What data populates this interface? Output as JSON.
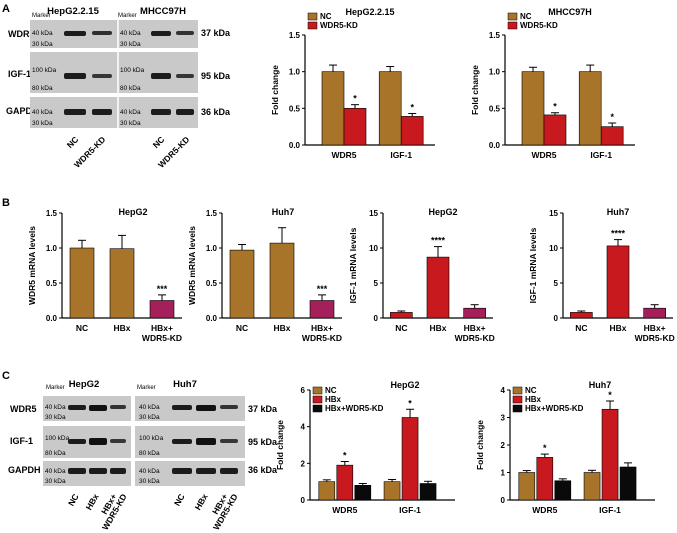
{
  "colors": {
    "nc": "#a8742a",
    "wdr5_kd": "#c8191f",
    "hbx": "#c8191f",
    "hbx_wdr5kd": "#0a0a0a",
    "hbx_wdr5kd_mrna": "#a5205a",
    "blot_bg": "#c9c9c9",
    "band": "#1c1c1c"
  },
  "panel_labels": {
    "a": "A",
    "b": "B",
    "c": "C"
  },
  "blots": {
    "common": {
      "marker": "Marker",
      "kda_37": "37 kDa",
      "kda_95": "95 kDa",
      "kda_36": "36 kDa",
      "mw_40": "40 kDa",
      "mw_30": "30 kDa",
      "mw_100": "100 kDa",
      "mw_80": "80 kDa",
      "row_wdr5": "WDR5",
      "row_igf1": "IGF-1",
      "row_gapdh": "GAPDH"
    },
    "a": {
      "left_title": "HepG2.2.15",
      "right_title": "MHCC97H",
      "lanes": [
        "NC",
        "WDR5-KD"
      ]
    },
    "c": {
      "left_title": "HepG2",
      "right_title": "Huh7",
      "lanes": [
        "NC",
        "HBx",
        "HBx+",
        "WDR5-KD"
      ]
    }
  },
  "chart_data": [
    {
      "id": "a1",
      "type": "bar",
      "title": "HepG2.2.15",
      "xlabel": "",
      "ylabel": "Fold change",
      "categories": [
        "WDR5",
        "IGF-1"
      ],
      "ylim": [
        0,
        1.5
      ],
      "yticks": [
        "0.0",
        "0.5",
        "1.0",
        "1.5"
      ],
      "series": [
        {
          "name": "NC",
          "values": [
            1.0,
            1.0
          ],
          "errors": [
            0.09,
            0.07
          ]
        },
        {
          "name": "WDR5-KD",
          "values": [
            0.5,
            0.39
          ],
          "errors": [
            0.05,
            0.04
          ]
        }
      ],
      "annotations": [
        "*",
        "*"
      ],
      "legend": "top-left"
    },
    {
      "id": "a2",
      "type": "bar",
      "title": "MHCC97H",
      "xlabel": "",
      "ylabel": "Fold change",
      "categories": [
        "WDR5",
        "IGF-1"
      ],
      "ylim": [
        0,
        1.5
      ],
      "yticks": [
        "0.0",
        "0.5",
        "1.0",
        "1.5"
      ],
      "series": [
        {
          "name": "NC",
          "values": [
            1.0,
            1.0
          ],
          "errors": [
            0.06,
            0.09
          ]
        },
        {
          "name": "WDR5-KD",
          "values": [
            0.41,
            0.25
          ],
          "errors": [
            0.03,
            0.05
          ]
        }
      ],
      "annotations": [
        "*",
        "*"
      ],
      "legend": "top-left"
    },
    {
      "id": "b1",
      "type": "bar",
      "title": "HepG2",
      "xlabel": "",
      "ylabel": "WDR5 mRNA levels",
      "categories": [
        "NC",
        "HBx",
        "HBx+|WDR5-KD"
      ],
      "ylim": [
        0,
        1.5
      ],
      "yticks": [
        "0.0",
        "0.5",
        "1.0",
        "1.5"
      ],
      "values": [
        1.0,
        0.99,
        0.25
      ],
      "errors": [
        0.11,
        0.19,
        0.08
      ],
      "annotations": [
        "",
        "",
        "***"
      ]
    },
    {
      "id": "b2",
      "type": "bar",
      "title": "Huh7",
      "xlabel": "",
      "ylabel": "WDR5 mRNA levels",
      "categories": [
        "NC",
        "HBx",
        "HBx+|WDR5-KD"
      ],
      "ylim": [
        0,
        1.5
      ],
      "yticks": [
        "0.0",
        "0.5",
        "1.0",
        "1.5"
      ],
      "values": [
        0.97,
        1.07,
        0.25
      ],
      "errors": [
        0.08,
        0.22,
        0.08
      ],
      "annotations": [
        "",
        "",
        "***"
      ]
    },
    {
      "id": "b3",
      "type": "bar",
      "title": "HepG2",
      "xlabel": "",
      "ylabel": "IGF-1 mRNA levels",
      "categories": [
        "NC",
        "HBx",
        "HBx+|WDR5-KD"
      ],
      "ylim": [
        0,
        15
      ],
      "yticks": [
        "0",
        "5",
        "10",
        "15"
      ],
      "values": [
        0.8,
        8.7,
        1.4
      ],
      "errors": [
        0.2,
        1.5,
        0.5
      ],
      "annotations": [
        "",
        "****",
        ""
      ]
    },
    {
      "id": "b4",
      "type": "bar",
      "title": "Huh7",
      "xlabel": "",
      "ylabel": "IGF-1 mRNA levels",
      "categories": [
        "NC",
        "HBx",
        "HBx+|WDR5-KD"
      ],
      "ylim": [
        0,
        15
      ],
      "yticks": [
        "0",
        "5",
        "10",
        "15"
      ],
      "values": [
        0.8,
        10.3,
        1.4
      ],
      "errors": [
        0.2,
        0.9,
        0.5
      ],
      "annotations": [
        "",
        "****",
        ""
      ]
    },
    {
      "id": "c1",
      "type": "bar",
      "title": "HepG2",
      "xlabel": "",
      "ylabel": "Fold change",
      "categories": [
        "WDR5",
        "IGF-1"
      ],
      "ylim": [
        0,
        6
      ],
      "yticks": [
        "0",
        "2",
        "4",
        "6"
      ],
      "series": [
        {
          "name": "NC",
          "values": [
            1.0,
            1.0
          ],
          "errors": [
            0.1,
            0.12
          ]
        },
        {
          "name": "HBx",
          "values": [
            1.9,
            4.5
          ],
          "errors": [
            0.2,
            0.45
          ]
        },
        {
          "name": "HBx+WDR5-KD",
          "values": [
            0.8,
            0.9
          ],
          "errors": [
            0.1,
            0.12
          ]
        }
      ],
      "annotations": [
        "*",
        "*"
      ],
      "legend": "top-left"
    },
    {
      "id": "c2",
      "type": "bar",
      "title": "Huh7",
      "xlabel": "",
      "ylabel": "Fold change",
      "categories": [
        "WDR5",
        "IGF-1"
      ],
      "ylim": [
        0,
        4
      ],
      "yticks": [
        "0",
        "1",
        "2",
        "3",
        "4"
      ],
      "series": [
        {
          "name": "NC",
          "values": [
            1.0,
            1.0
          ],
          "errors": [
            0.07,
            0.08
          ]
        },
        {
          "name": "HBx",
          "values": [
            1.55,
            3.3
          ],
          "errors": [
            0.12,
            0.3
          ]
        },
        {
          "name": "HBx+WDR5-KD",
          "values": [
            0.7,
            1.2
          ],
          "errors": [
            0.07,
            0.15
          ]
        }
      ],
      "annotations": [
        "*",
        "*"
      ],
      "legend": "top-left"
    }
  ]
}
